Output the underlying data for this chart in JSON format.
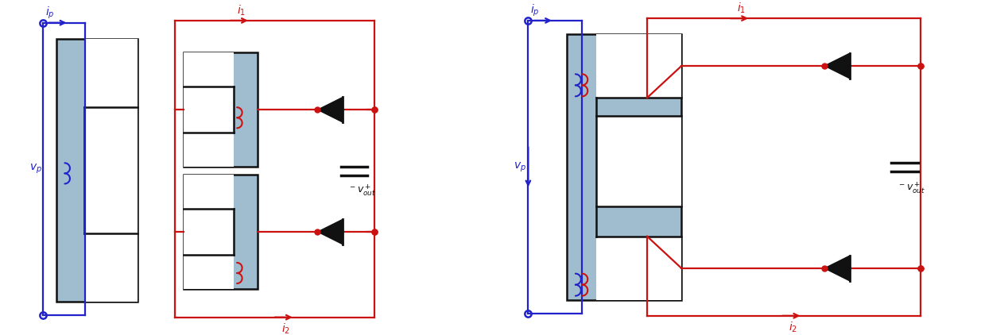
{
  "background_color": "#ffffff",
  "core_fill": "#a0bdd0",
  "core_edge": "#111111",
  "blue_color": "#2222cc",
  "red_color": "#cc1111",
  "black_color": "#111111",
  "fig_width": 12.68,
  "fig_height": 4.22
}
